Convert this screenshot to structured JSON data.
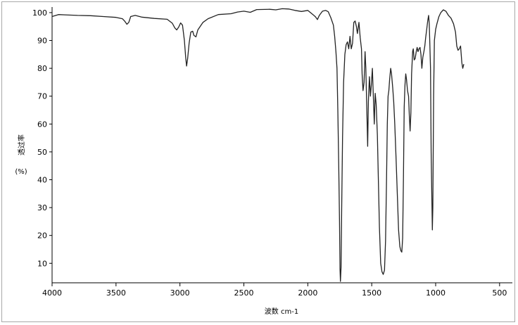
{
  "chart_data": {
    "type": "line",
    "title": "",
    "xlabel": "波数 cm-1",
    "ylabel": "透过率",
    "ylabel_unit": "(%)",
    "xlim": [
      4000,
      400
    ],
    "ylim": [
      3,
      102
    ],
    "x_reversed": true,
    "grid": false,
    "line_color": "#222222",
    "x_ticks": [
      4000,
      3500,
      3000,
      2500,
      2000,
      1500,
      1000,
      500
    ],
    "y_ticks": [
      10,
      20,
      30,
      40,
      50,
      60,
      70,
      80,
      90,
      100
    ],
    "series": [
      {
        "points": [
          [
            4000,
            98.6
          ],
          [
            3950,
            99.3
          ],
          [
            3900,
            99.2
          ],
          [
            3800,
            99.0
          ],
          [
            3700,
            98.9
          ],
          [
            3600,
            98.6
          ],
          [
            3500,
            98.3
          ],
          [
            3450,
            97.8
          ],
          [
            3430,
            96.8
          ],
          [
            3415,
            95.8
          ],
          [
            3400,
            96.5
          ],
          [
            3385,
            98.6
          ],
          [
            3350,
            99.0
          ],
          [
            3300,
            98.4
          ],
          [
            3200,
            97.9
          ],
          [
            3100,
            97.6
          ],
          [
            3060,
            96.2
          ],
          [
            3040,
            94.5
          ],
          [
            3025,
            93.8
          ],
          [
            3010,
            94.8
          ],
          [
            2995,
            96.3
          ],
          [
            2980,
            95.5
          ],
          [
            2965,
            90.0
          ],
          [
            2955,
            84.0
          ],
          [
            2948,
            80.8
          ],
          [
            2940,
            83.5
          ],
          [
            2928,
            89.0
          ],
          [
            2915,
            93.0
          ],
          [
            2900,
            93.3
          ],
          [
            2890,
            91.8
          ],
          [
            2875,
            91.3
          ],
          [
            2860,
            93.8
          ],
          [
            2820,
            96.5
          ],
          [
            2780,
            97.8
          ],
          [
            2700,
            99.3
          ],
          [
            2600,
            99.6
          ],
          [
            2550,
            100.2
          ],
          [
            2500,
            100.5
          ],
          [
            2450,
            100.1
          ],
          [
            2400,
            101.1
          ],
          [
            2300,
            101.2
          ],
          [
            2250,
            101.0
          ],
          [
            2200,
            101.4
          ],
          [
            2150,
            101.3
          ],
          [
            2100,
            100.8
          ],
          [
            2050,
            100.4
          ],
          [
            2000,
            100.8
          ],
          [
            1960,
            99.3
          ],
          [
            1940,
            98.5
          ],
          [
            1925,
            97.5
          ],
          [
            1910,
            99.0
          ],
          [
            1885,
            100.5
          ],
          [
            1860,
            100.8
          ],
          [
            1840,
            100.3
          ],
          [
            1820,
            98.2
          ],
          [
            1800,
            95.5
          ],
          [
            1790,
            91.5
          ],
          [
            1780,
            86.0
          ],
          [
            1772,
            80.0
          ],
          [
            1765,
            65.0
          ],
          [
            1758,
            45.0
          ],
          [
            1752,
            25.0
          ],
          [
            1748,
            8.0
          ],
          [
            1745,
            3.5
          ],
          [
            1740,
            8.5
          ],
          [
            1735,
            30.0
          ],
          [
            1728,
            55.0
          ],
          [
            1720,
            75.0
          ],
          [
            1710,
            85.0
          ],
          [
            1700,
            88.5
          ],
          [
            1690,
            89.5
          ],
          [
            1680,
            87.0
          ],
          [
            1670,
            91.5
          ],
          [
            1660,
            87.0
          ],
          [
            1650,
            89.0
          ],
          [
            1640,
            96.5
          ],
          [
            1630,
            97.0
          ],
          [
            1620,
            95.0
          ],
          [
            1612,
            92.5
          ],
          [
            1600,
            96.5
          ],
          [
            1590,
            91.0
          ],
          [
            1580,
            87.0
          ],
          [
            1575,
            78.0
          ],
          [
            1568,
            72.0
          ],
          [
            1560,
            75.0
          ],
          [
            1552,
            86.0
          ],
          [
            1546,
            80.0
          ],
          [
            1538,
            64.0
          ],
          [
            1532,
            52.0
          ],
          [
            1526,
            68.0
          ],
          [
            1518,
            77.0
          ],
          [
            1510,
            70.0
          ],
          [
            1503,
            74.0
          ],
          [
            1495,
            80.0
          ],
          [
            1488,
            71.0
          ],
          [
            1480,
            60.0
          ],
          [
            1473,
            71.0
          ],
          [
            1465,
            67.0
          ],
          [
            1456,
            56.0
          ],
          [
            1448,
            40.0
          ],
          [
            1440,
            23.0
          ],
          [
            1430,
            10.0
          ],
          [
            1420,
            7.0
          ],
          [
            1410,
            6.0
          ],
          [
            1400,
            7.5
          ],
          [
            1392,
            18.0
          ],
          [
            1384,
            40.0
          ],
          [
            1378,
            60.0
          ],
          [
            1372,
            70.0
          ],
          [
            1366,
            72.0
          ],
          [
            1360,
            76.0
          ],
          [
            1352,
            80.0
          ],
          [
            1345,
            78.0
          ],
          [
            1336,
            73.0
          ],
          [
            1328,
            68.0
          ],
          [
            1320,
            60.0
          ],
          [
            1310,
            48.0
          ],
          [
            1300,
            35.0
          ],
          [
            1290,
            22.0
          ],
          [
            1280,
            16.0
          ],
          [
            1272,
            14.5
          ],
          [
            1265,
            14.0
          ],
          [
            1258,
            19.0
          ],
          [
            1252,
            40.0
          ],
          [
            1246,
            66.0
          ],
          [
            1240,
            74.0
          ],
          [
            1234,
            78.0
          ],
          [
            1228,
            76.0
          ],
          [
            1220,
            72.0
          ],
          [
            1212,
            70.0
          ],
          [
            1206,
            63.0
          ],
          [
            1200,
            57.5
          ],
          [
            1194,
            64.0
          ],
          [
            1188,
            78.0
          ],
          [
            1180,
            86.0
          ],
          [
            1175,
            87.0
          ],
          [
            1168,
            83.0
          ],
          [
            1160,
            83.5
          ],
          [
            1152,
            86.0
          ],
          [
            1145,
            87.5
          ],
          [
            1138,
            86.0
          ],
          [
            1130,
            87.0
          ],
          [
            1122,
            87.5
          ],
          [
            1115,
            85.0
          ],
          [
            1108,
            80.0
          ],
          [
            1100,
            84.0
          ],
          [
            1092,
            86.0
          ],
          [
            1085,
            88.0
          ],
          [
            1078,
            91.0
          ],
          [
            1070,
            94.0
          ],
          [
            1062,
            97.0
          ],
          [
            1055,
            99.0
          ],
          [
            1050,
            96.0
          ],
          [
            1046,
            90.0
          ],
          [
            1040,
            80.0
          ],
          [
            1035,
            50.0
          ],
          [
            1030,
            35.0
          ],
          [
            1026,
            22.0
          ],
          [
            1022,
            30.0
          ],
          [
            1016,
            70.0
          ],
          [
            1010,
            90.0
          ],
          [
            1000,
            94.0
          ],
          [
            990,
            96.0
          ],
          [
            975,
            98.5
          ],
          [
            960,
            100.0
          ],
          [
            940,
            101.0
          ],
          [
            920,
            100.5
          ],
          [
            900,
            99.0
          ],
          [
            880,
            98.0
          ],
          [
            860,
            96.0
          ],
          [
            845,
            93.0
          ],
          [
            835,
            88.0
          ],
          [
            825,
            86.5
          ],
          [
            815,
            87.0
          ],
          [
            805,
            88.0
          ],
          [
            800,
            85.0
          ],
          [
            795,
            82.0
          ],
          [
            788,
            80.0
          ],
          [
            780,
            81.5
          ]
        ]
      }
    ]
  }
}
